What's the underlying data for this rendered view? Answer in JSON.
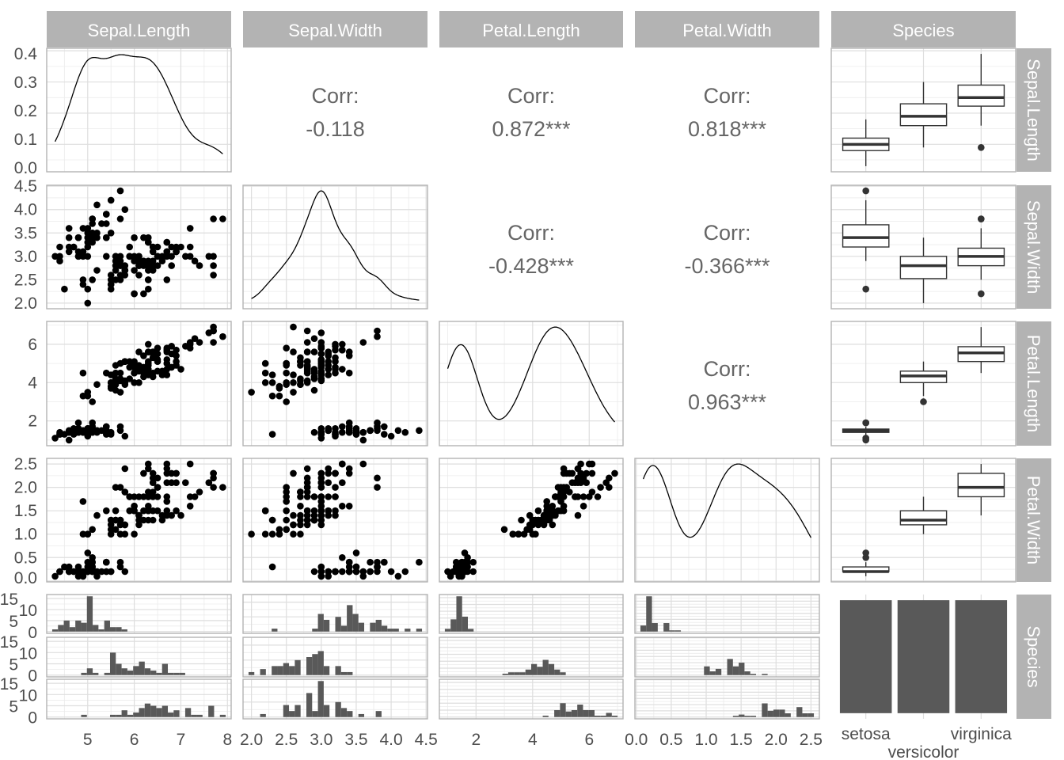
{
  "chart_data": {
    "type": "scatter-matrix",
    "variables": [
      "Sepal.Length",
      "Sepal.Width",
      "Petal.Length",
      "Petal.Width",
      "Species"
    ],
    "species": [
      "setosa",
      "versicolor",
      "virginica"
    ],
    "species_counts": [
      50,
      50,
      50
    ],
    "correlations": [
      {
        "row": "Sepal.Length",
        "col": "Sepal.Width",
        "label": "Corr:",
        "value": "-0.118"
      },
      {
        "row": "Sepal.Length",
        "col": "Petal.Length",
        "label": "Corr:",
        "value": "0.872***"
      },
      {
        "row": "Sepal.Length",
        "col": "Petal.Width",
        "label": "Corr:",
        "value": "0.818***"
      },
      {
        "row": "Sepal.Width",
        "col": "Petal.Length",
        "label": "Corr:",
        "value": "-0.428***"
      },
      {
        "row": "Sepal.Width",
        "col": "Petal.Width",
        "label": "Corr:",
        "value": "-0.366***"
      },
      {
        "row": "Petal.Length",
        "col": "Petal.Width",
        "label": "Corr:",
        "value": "0.963***"
      }
    ],
    "x_ticks": [
      [
        "5",
        "6",
        "7",
        "8"
      ],
      [
        "2.0",
        "2.5",
        "3.0",
        "3.5",
        "4.0",
        "4.5"
      ],
      [
        "2",
        "4",
        "6"
      ],
      [
        "0.0",
        "0.5",
        "1.0",
        "1.5",
        "2.0",
        "2.5"
      ],
      [
        "setosa",
        "versicolor",
        "virginica"
      ]
    ],
    "y_ticks": [
      [
        "0.0",
        "0.1",
        "0.2",
        "0.3",
        "0.4"
      ],
      [
        "2.0",
        "2.5",
        "3.0",
        "3.5",
        "4.0",
        "4.5"
      ],
      [
        "2",
        "4",
        "6"
      ],
      [
        "0.0",
        "0.5",
        "1.0",
        "1.5",
        "2.0",
        "2.5"
      ],
      [
        "0",
        "5",
        "10",
        "15"
      ]
    ],
    "grid": true,
    "histogram_bins": 30,
    "point_color": "#000000",
    "bar_color": "#595959",
    "strip_color": "#b3b3b3",
    "observations": {
      "Sepal.Length": [
        5.1,
        4.9,
        4.7,
        4.6,
        5.0,
        5.4,
        4.6,
        5.0,
        4.4,
        4.9,
        5.4,
        4.8,
        4.8,
        4.3,
        5.8,
        5.7,
        5.4,
        5.1,
        5.7,
        5.1,
        5.4,
        5.1,
        4.6,
        5.1,
        4.8,
        5.0,
        5.0,
        5.2,
        5.2,
        4.7,
        4.8,
        5.4,
        5.2,
        5.5,
        4.9,
        5.0,
        5.5,
        4.9,
        4.4,
        5.1,
        5.0,
        4.5,
        4.4,
        5.0,
        5.1,
        4.8,
        5.1,
        4.6,
        5.3,
        5.0,
        7.0,
        6.4,
        6.9,
        5.5,
        6.5,
        5.7,
        6.3,
        4.9,
        6.6,
        5.2,
        5.0,
        5.9,
        6.0,
        6.1,
        5.6,
        6.7,
        5.6,
        5.8,
        6.2,
        5.6,
        5.9,
        6.1,
        6.3,
        6.1,
        6.4,
        6.6,
        6.8,
        6.7,
        6.0,
        5.7,
        5.5,
        5.5,
        5.8,
        6.0,
        5.4,
        6.0,
        6.7,
        6.3,
        5.6,
        5.5,
        5.5,
        6.1,
        5.8,
        5.0,
        5.6,
        5.7,
        5.7,
        6.2,
        5.1,
        5.7,
        6.3,
        5.8,
        7.1,
        6.3,
        6.5,
        7.6,
        4.9,
        7.3,
        6.7,
        7.2,
        6.5,
        6.4,
        6.8,
        5.7,
        5.8,
        6.4,
        6.5,
        7.7,
        7.7,
        6.0,
        6.9,
        5.6,
        7.7,
        6.3,
        6.7,
        7.2,
        6.2,
        6.1,
        6.4,
        7.2,
        7.4,
        7.9,
        6.4,
        6.3,
        6.1,
        7.7,
        6.3,
        6.4,
        6.0,
        6.9,
        6.7,
        6.9,
        5.8,
        6.8,
        6.7,
        6.7,
        6.3,
        6.5,
        6.2,
        5.9
      ],
      "Sepal.Width": [
        3.5,
        3.0,
        3.2,
        3.1,
        3.6,
        3.9,
        3.4,
        3.4,
        2.9,
        3.1,
        3.7,
        3.4,
        3.0,
        3.0,
        4.0,
        4.4,
        3.9,
        3.5,
        3.8,
        3.8,
        3.4,
        3.7,
        3.6,
        3.3,
        3.4,
        3.0,
        3.4,
        3.5,
        3.4,
        3.2,
        3.1,
        3.4,
        4.1,
        4.2,
        3.1,
        3.2,
        3.5,
        3.6,
        3.0,
        3.4,
        3.5,
        2.3,
        3.2,
        3.5,
        3.8,
        3.0,
        3.8,
        3.2,
        3.7,
        3.3,
        3.2,
        3.2,
        3.1,
        2.3,
        2.8,
        2.8,
        3.3,
        2.4,
        2.9,
        2.7,
        2.0,
        3.0,
        2.2,
        2.9,
        2.9,
        3.1,
        3.0,
        2.7,
        2.2,
        2.5,
        3.2,
        2.8,
        2.5,
        2.8,
        2.9,
        3.0,
        2.8,
        3.0,
        2.9,
        2.6,
        2.4,
        2.4,
        2.7,
        2.7,
        3.0,
        3.4,
        3.1,
        2.3,
        3.0,
        2.5,
        2.6,
        3.0,
        2.6,
        2.3,
        2.7,
        3.0,
        2.9,
        2.9,
        2.5,
        2.8,
        3.3,
        2.7,
        3.0,
        2.9,
        3.0,
        3.0,
        2.5,
        2.9,
        2.5,
        3.6,
        3.2,
        2.7,
        3.0,
        2.5,
        2.8,
        3.2,
        3.0,
        3.8,
        2.6,
        2.2,
        3.2,
        2.8,
        2.8,
        2.7,
        3.3,
        3.2,
        2.8,
        3.0,
        2.8,
        3.0,
        2.8,
        3.8,
        2.8,
        2.8,
        2.6,
        3.0,
        3.4,
        3.1,
        3.0,
        3.1,
        3.1,
        3.1,
        2.7,
        3.2,
        3.3,
        3.0,
        2.5,
        3.0,
        3.4,
        3.0
      ],
      "Petal.Length": [
        1.4,
        1.4,
        1.3,
        1.5,
        1.4,
        1.7,
        1.4,
        1.5,
        1.4,
        1.5,
        1.5,
        1.6,
        1.4,
        1.1,
        1.2,
        1.5,
        1.3,
        1.4,
        1.7,
        1.5,
        1.7,
        1.5,
        1.0,
        1.7,
        1.9,
        1.6,
        1.6,
        1.5,
        1.4,
        1.6,
        1.6,
        1.5,
        1.5,
        1.4,
        1.5,
        1.2,
        1.3,
        1.4,
        1.3,
        1.5,
        1.3,
        1.3,
        1.3,
        1.6,
        1.9,
        1.4,
        1.6,
        1.4,
        1.5,
        1.4,
        4.7,
        4.5,
        4.9,
        4.0,
        4.6,
        4.5,
        4.7,
        3.3,
        4.6,
        3.9,
        3.5,
        4.2,
        4.0,
        4.7,
        3.6,
        4.4,
        4.5,
        4.1,
        4.5,
        3.9,
        4.8,
        4.0,
        4.9,
        4.7,
        4.3,
        4.4,
        4.8,
        5.0,
        4.5,
        3.5,
        3.8,
        3.7,
        3.9,
        5.1,
        4.5,
        4.5,
        4.7,
        4.4,
        4.1,
        4.0,
        4.4,
        4.6,
        4.0,
        3.3,
        4.2,
        4.2,
        4.2,
        4.3,
        3.0,
        4.1,
        6.0,
        5.1,
        5.9,
        5.6,
        5.8,
        6.6,
        4.5,
        6.3,
        5.8,
        6.1,
        5.1,
        5.3,
        5.5,
        5.0,
        5.1,
        5.3,
        5.5,
        6.7,
        6.9,
        5.0,
        5.7,
        4.9,
        6.7,
        4.9,
        5.7,
        6.0,
        4.8,
        4.9,
        5.6,
        5.8,
        6.1,
        6.4,
        5.6,
        5.1,
        5.6,
        6.1,
        5.6,
        5.5,
        4.8,
        5.4,
        5.6,
        5.1,
        5.1,
        5.9,
        5.7,
        5.2,
        5.0,
        5.2,
        5.4,
        5.1
      ],
      "Petal.Width": [
        0.2,
        0.2,
        0.2,
        0.2,
        0.2,
        0.4,
        0.3,
        0.2,
        0.2,
        0.1,
        0.2,
        0.2,
        0.1,
        0.1,
        0.2,
        0.4,
        0.4,
        0.3,
        0.3,
        0.3,
        0.2,
        0.4,
        0.2,
        0.5,
        0.2,
        0.2,
        0.4,
        0.2,
        0.2,
        0.2,
        0.2,
        0.4,
        0.1,
        0.2,
        0.2,
        0.2,
        0.2,
        0.1,
        0.2,
        0.2,
        0.3,
        0.3,
        0.2,
        0.6,
        0.4,
        0.3,
        0.2,
        0.2,
        0.2,
        0.2,
        1.4,
        1.5,
        1.5,
        1.3,
        1.5,
        1.3,
        1.6,
        1.0,
        1.3,
        1.4,
        1.0,
        1.5,
        1.0,
        1.4,
        1.3,
        1.4,
        1.5,
        1.0,
        1.5,
        1.1,
        1.8,
        1.3,
        1.5,
        1.2,
        1.3,
        1.4,
        1.4,
        1.7,
        1.5,
        1.0,
        1.1,
        1.0,
        1.2,
        1.6,
        1.5,
        1.6,
        1.5,
        1.3,
        1.3,
        1.3,
        1.2,
        1.4,
        1.2,
        1.0,
        1.3,
        1.2,
        1.3,
        1.3,
        1.1,
        1.3,
        2.5,
        1.9,
        2.1,
        1.8,
        2.2,
        2.1,
        1.7,
        1.8,
        1.8,
        2.5,
        2.0,
        1.9,
        2.1,
        2.0,
        2.4,
        2.3,
        1.8,
        2.2,
        2.3,
        1.5,
        2.3,
        2.0,
        2.0,
        1.8,
        2.1,
        1.8,
        1.8,
        1.8,
        2.1,
        1.6,
        1.9,
        2.0,
        2.2,
        1.5,
        1.4,
        2.3,
        2.4,
        1.8,
        1.8,
        2.1,
        2.4,
        2.3,
        1.9,
        2.3,
        2.5,
        2.3,
        1.9,
        2.0,
        2.3,
        1.8
      ]
    }
  }
}
